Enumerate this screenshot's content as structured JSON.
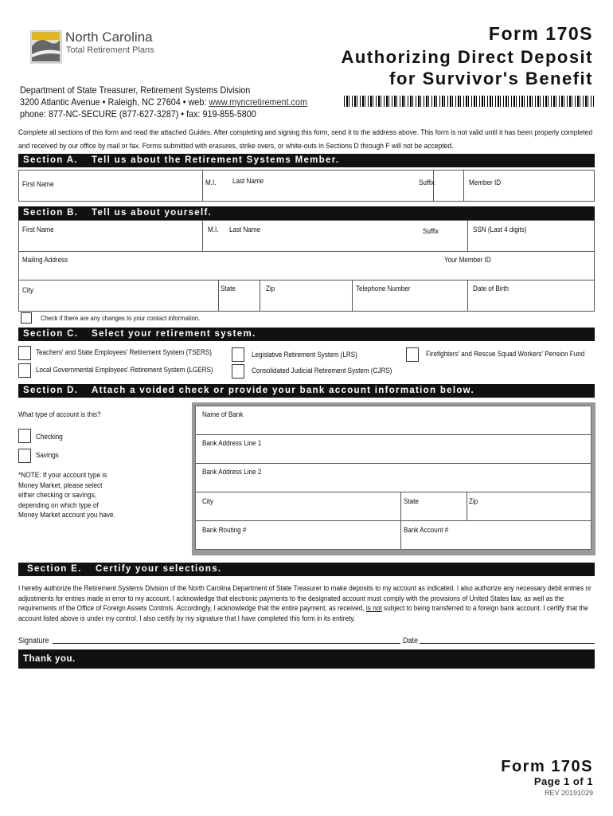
{
  "header": {
    "logo": {
      "name": "North Carolina",
      "tagline": "Total Retirement Plans"
    },
    "form_number": "Form 170S",
    "title_line1": "Authorizing Direct Deposit",
    "title_line2": "for Survivor's Benefit",
    "dept": "Department of State Treasurer, Retirement Systems Division",
    "address": "3200 Atlantic Avenue  • Raleigh, NC 27604 • web: ",
    "web": "www.myncretirement.com",
    "phone": "phone: 877-NC-SECURE (877-627-3287) • fax: 919-855-5800",
    "instructions1": "Complete all sections of this form and read the attached Guides. After completing and signing this form, send it to the address above. This form is not valid until it has been properly completed",
    "instructions2": "and received by our office by mail or fax. Forms submitted with erasures, strike overs, or white-outs in Sections D through F will not be accepted."
  },
  "sectionA": {
    "label": "Section A.",
    "title": "Tell us about the Retirement Systems Member.",
    "fields": {
      "first_name": "First Name",
      "mi": "M.I.",
      "last_name": "Last Name",
      "suffix": "Suffix",
      "member_id": "Member ID"
    }
  },
  "sectionB": {
    "label": "Section B.",
    "title": "Tell us about yourself.",
    "fields": {
      "first_name": "First Name",
      "mi": "M.I.",
      "last_name": "Last Name",
      "suffix": "Suffix",
      "ssn": "SSN (Last 4 digits)",
      "mailing": "Mailing Address",
      "member_id": "Your Member ID",
      "city": "City",
      "state": "State",
      "zip": "Zip",
      "phone": "Telephone Number",
      "dob": "Date of Birth"
    },
    "changes": "Check if there are any changes to your contact information."
  },
  "sectionC": {
    "label": "Section C.",
    "title": "Select your retirement system.",
    "options": [
      "Teachers' and State Employees' Retirement System (TSERS)",
      "Legislative Retirement System (LRS)",
      "Firefighters' and Rescue Squad Workers' Pension Fund",
      "Local Governmental Employees' Retirement System (LGERS)",
      "Consolidated Judicial Retirement System (CJRS)"
    ]
  },
  "sectionD": {
    "label": "Section D.",
    "title": "Attach a voided check or provide your bank account information below.",
    "question": "What type of account is this?",
    "checking": "Checking",
    "savings": "Savings",
    "note": [
      "*NOTE: If your account type is",
      "Money Market, please select",
      "either checking or savings,",
      "depending on which type of",
      "Money Market account you have."
    ],
    "fields": {
      "bank_name": "Name of Bank",
      "addr1": "Bank Address Line 1",
      "addr2": "Bank Address Line 2",
      "city": "City",
      "state": "State",
      "zip": "Zip",
      "routing": "Bank Routing #",
      "account": "Bank  Account #"
    }
  },
  "sectionE": {
    "label": "Section E.",
    "title": "Certify your selections.",
    "text_before": "I hereby authorize the Retirement Systems Division of the North Carolina Department of State Treasurer to make deposits to my account as indicated. I also authorize any necessary debit entries or adjustments for entries made in error to my account. I acknowledge that electronic payments to the designated account must comply with the provisions of United States law, as well as the requirements of the Office of Foreign Assets Controls. Accordingly, I acknowledge that the entire payment, as received, ",
    "text_underlined": "is not",
    "text_after": " subject to being transferred to a foreign bank account. I certify that the account listed above is under my control. I also certify by my signature that I have completed this form in its entirety.",
    "signature": "Signature",
    "date": "Date"
  },
  "thank_you": "Thank you.",
  "footer": {
    "form": "Form 170S",
    "page": "Page 1 of 1",
    "rev": "REV 20191029"
  }
}
